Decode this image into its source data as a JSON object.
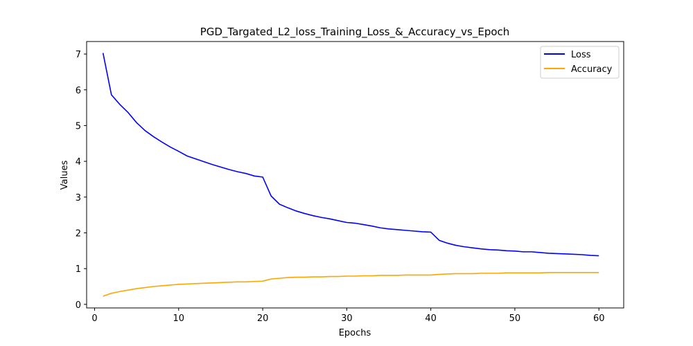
{
  "chart_data": {
    "type": "line",
    "title": "PGD_Targated_L2_loss_Training_Loss_&_Accuracy_vs_Epoch",
    "xlabel": "Epochs",
    "ylabel": "Values",
    "xlim": [
      -0.95,
      62.95
    ],
    "ylim": [
      -0.1,
      7.35
    ],
    "xticks": [
      0,
      10,
      20,
      30,
      40,
      50,
      60
    ],
    "yticks": [
      0,
      1,
      2,
      3,
      4,
      5,
      6,
      7
    ],
    "grid": false,
    "legend_position": "top-right",
    "x": [
      1,
      2,
      3,
      4,
      5,
      6,
      7,
      8,
      9,
      10,
      11,
      12,
      13,
      14,
      15,
      16,
      17,
      18,
      19,
      20,
      21,
      22,
      23,
      24,
      25,
      26,
      27,
      28,
      29,
      30,
      31,
      32,
      33,
      34,
      35,
      36,
      37,
      38,
      39,
      40,
      41,
      42,
      43,
      44,
      45,
      46,
      47,
      48,
      49,
      50,
      51,
      52,
      53,
      54,
      55,
      56,
      57,
      58,
      59,
      60
    ],
    "series": [
      {
        "name": "Loss",
        "color": "#0000ff",
        "values": [
          7.03,
          5.86,
          5.59,
          5.36,
          5.08,
          4.86,
          4.69,
          4.54,
          4.4,
          4.28,
          4.15,
          4.07,
          3.99,
          3.91,
          3.84,
          3.77,
          3.71,
          3.66,
          3.59,
          3.56,
          3.03,
          2.8,
          2.7,
          2.61,
          2.54,
          2.48,
          2.43,
          2.39,
          2.34,
          2.29,
          2.27,
          2.23,
          2.19,
          2.14,
          2.11,
          2.09,
          2.07,
          2.05,
          2.03,
          2.02,
          1.79,
          1.71,
          1.65,
          1.61,
          1.58,
          1.55,
          1.53,
          1.52,
          1.5,
          1.49,
          1.47,
          1.47,
          1.45,
          1.43,
          1.42,
          1.41,
          1.4,
          1.39,
          1.37,
          1.36
        ]
      },
      {
        "name": "Accuracy",
        "color": "#ffa500",
        "values": [
          0.23,
          0.31,
          0.36,
          0.4,
          0.44,
          0.47,
          0.5,
          0.52,
          0.54,
          0.56,
          0.57,
          0.58,
          0.59,
          0.6,
          0.61,
          0.62,
          0.63,
          0.63,
          0.64,
          0.65,
          0.71,
          0.73,
          0.75,
          0.76,
          0.76,
          0.77,
          0.77,
          0.78,
          0.78,
          0.79,
          0.79,
          0.8,
          0.8,
          0.81,
          0.81,
          0.81,
          0.82,
          0.82,
          0.82,
          0.82,
          0.84,
          0.85,
          0.86,
          0.86,
          0.86,
          0.87,
          0.87,
          0.87,
          0.88,
          0.88,
          0.88,
          0.88,
          0.88,
          0.89,
          0.89,
          0.89,
          0.89,
          0.89,
          0.89,
          0.89
        ]
      }
    ]
  }
}
